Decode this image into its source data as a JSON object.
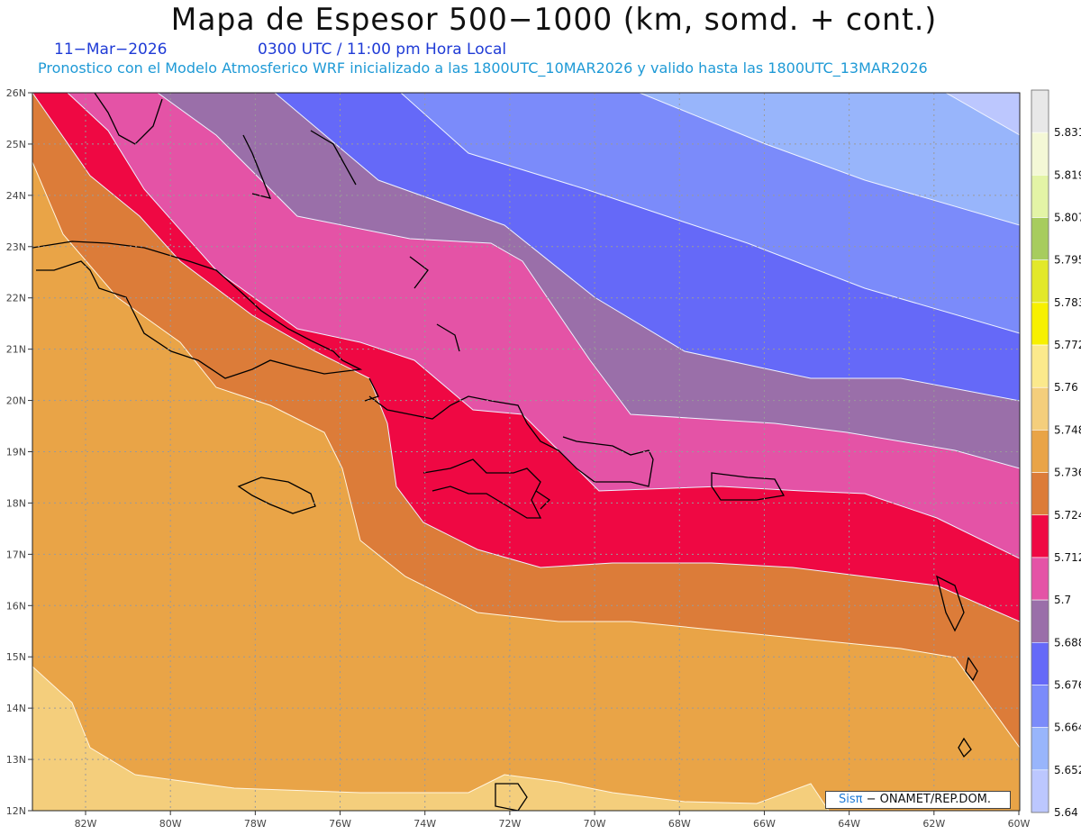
{
  "header": {
    "title": "Mapa de Espesor 500−1000 (km, somd. + cont.)",
    "date": "11−Mar−2026",
    "time": "0300 UTC / 11:00 pm Hora Local",
    "forecast": "Pronostico con el Modelo Atmosferico WRF inicializado a las 1800UTC_10MAR2026 y valido hasta las  1800UTC_13MAR2026"
  },
  "map": {
    "lat_labels": [
      "26N",
      "25N",
      "24N",
      "23N",
      "22N",
      "21N",
      "20N",
      "19N",
      "18N",
      "17N",
      "16N",
      "15N",
      "14N",
      "13N",
      "12N"
    ],
    "lon_labels": [
      "82W",
      "80W",
      "78W",
      "76W",
      "74W",
      "72W",
      "70W",
      "68W",
      "66W",
      "64W",
      "62W",
      "60W"
    ],
    "grid": true
  },
  "colorbar": {
    "labels": [
      "5.831",
      "5.819",
      "5.807",
      "5.795",
      "5.783",
      "5.772",
      "5.76",
      "5.748",
      "5.736",
      "5.724",
      "5.712",
      "5.7",
      "5.688",
      "5.676",
      "5.664",
      "5.652",
      "5.64"
    ],
    "colors": [
      "#e8e8e8",
      "#f4f8d6",
      "#e3f4a6",
      "#a7cc5e",
      "#e2e82a",
      "#f7f000",
      "#fbe98c",
      "#f4ce7c",
      "#e9a447",
      "#dc7c39",
      "#ef0843",
      "#e453a6",
      "#9a6fa9",
      "#6569f8",
      "#7b8bfa",
      "#98b5fb",
      "#bcc7fe"
    ]
  },
  "credit": {
    "brand": "Sisπ",
    "org": "− ONAMET/REP.DOM."
  }
}
